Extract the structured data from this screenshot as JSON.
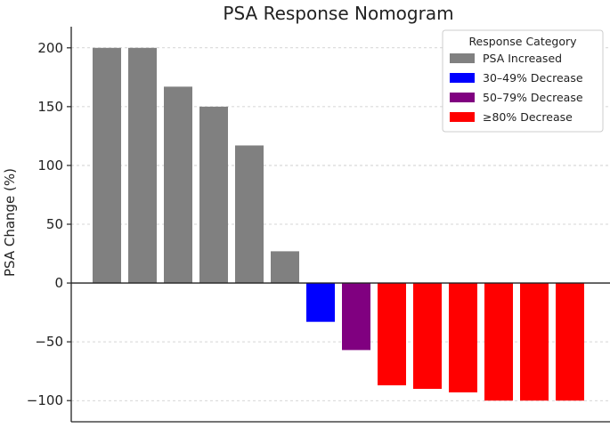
{
  "chart_data": {
    "type": "bar",
    "title": "PSA Response Nomogram",
    "xlabel": "",
    "ylabel": "PSA Change (%)",
    "ylim": [
      -118,
      218
    ],
    "yticks": [
      200,
      150,
      100,
      50,
      0,
      -50,
      -100
    ],
    "grid": "horizontal-dashed",
    "legend_position": "top-right",
    "legend_title": "Response Category",
    "categories_legend": [
      {
        "name": "PSA Increased",
        "color": "#808080"
      },
      {
        "name": "30–49% Decrease",
        "color": "#0000ff"
      },
      {
        "name": "50–79% Decrease",
        "color": "#800080"
      },
      {
        "name": "≥80% Decrease",
        "color": "#ff0000"
      }
    ],
    "values": [
      200,
      200,
      167,
      150,
      117,
      27,
      -33,
      -57,
      -87,
      -90,
      -93,
      -100,
      -100,
      -100
    ],
    "bar_category": [
      "PSA Increased",
      "PSA Increased",
      "PSA Increased",
      "PSA Increased",
      "PSA Increased",
      "PSA Increased",
      "30–49% Decrease",
      "50–79% Decrease",
      "≥80% Decrease",
      "≥80% Decrease",
      "≥80% Decrease",
      "≥80% Decrease",
      "≥80% Decrease",
      "≥80% Decrease"
    ]
  }
}
